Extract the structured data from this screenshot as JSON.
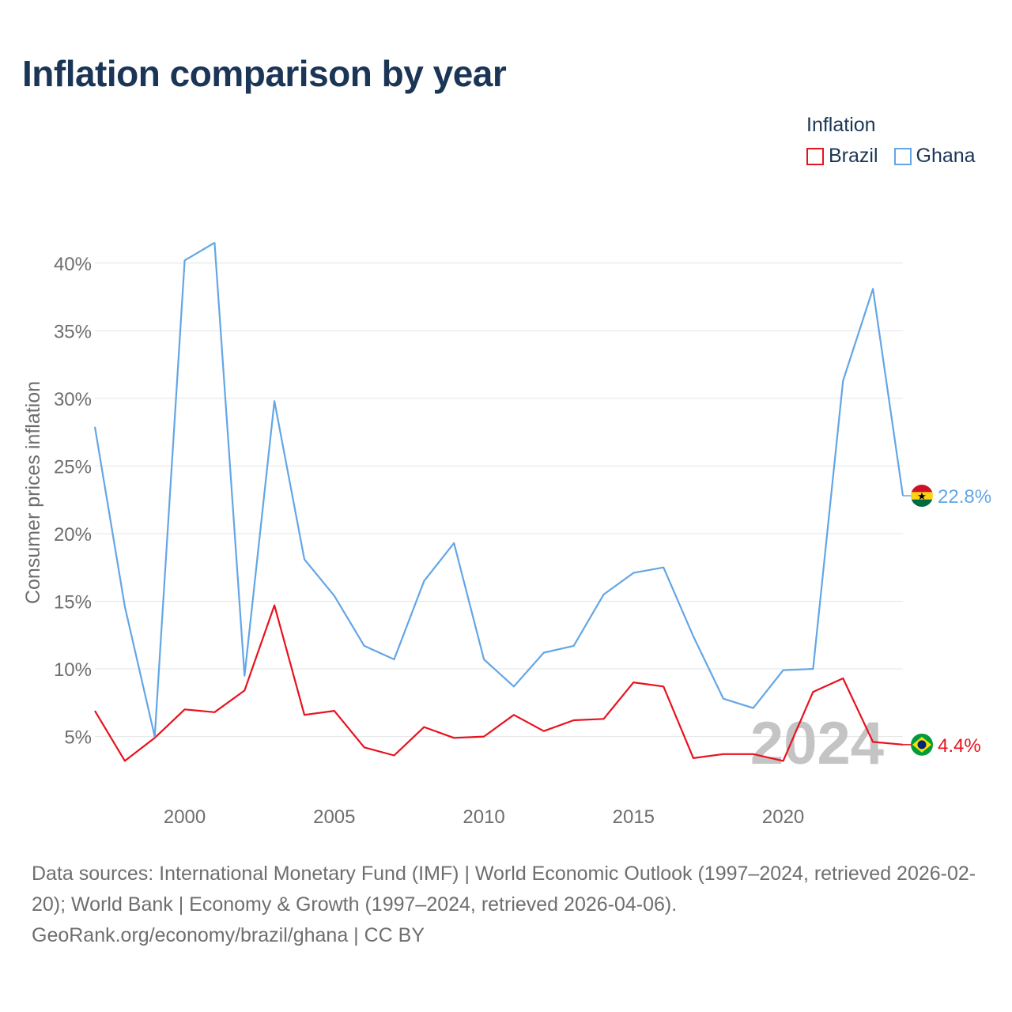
{
  "title": "Inflation comparison by year",
  "legend": {
    "title": "Inflation",
    "items": [
      {
        "name": "Brazil",
        "color": "#e8121e"
      },
      {
        "name": "Ghana",
        "color": "#63a6e6"
      }
    ]
  },
  "year_watermark": "2024",
  "footer": {
    "line1": "Data sources: International Monetary Fund (IMF) | World Economic Outlook (1997–2024, retrieved 2026-02-20); World Bank | Economy & Growth (1997–2024, retrieved 2026-04-06).",
    "line2": "GeoRank.org/economy/brazil/ghana | CC BY"
  },
  "chart_data": {
    "type": "line",
    "title": "Inflation comparison by year",
    "xlabel": "",
    "ylabel": "Consumer prices inflation",
    "x": [
      1997,
      1998,
      1999,
      2000,
      2001,
      2002,
      2003,
      2004,
      2005,
      2006,
      2007,
      2008,
      2009,
      2010,
      2011,
      2012,
      2013,
      2014,
      2015,
      2016,
      2017,
      2018,
      2019,
      2020,
      2021,
      2022,
      2023,
      2024
    ],
    "xlim": [
      1997,
      2024
    ],
    "ylim": [
      1,
      42.5
    ],
    "x_ticks": [
      "2000",
      "2005",
      "2010",
      "2015",
      "2020"
    ],
    "y_ticks": [
      "5%",
      "10%",
      "15%",
      "20%",
      "25%",
      "30%",
      "35%",
      "40%"
    ],
    "grid": true,
    "legend_position": "top-right",
    "series": [
      {
        "name": "Brazil",
        "color": "#e8121e",
        "values": [
          6.9,
          3.2,
          4.9,
          7.0,
          6.8,
          8.4,
          14.7,
          6.6,
          6.9,
          4.2,
          3.6,
          5.7,
          4.9,
          5.0,
          6.6,
          5.4,
          6.2,
          6.3,
          9.0,
          8.7,
          3.4,
          3.7,
          3.7,
          3.2,
          8.3,
          9.3,
          4.6,
          4.4
        ],
        "end_label": "4.4%",
        "flag": "brazil-flag"
      },
      {
        "name": "Ghana",
        "color": "#63a6e6",
        "values": [
          27.9,
          14.6,
          5.0,
          40.2,
          41.5,
          9.5,
          29.8,
          18.1,
          15.4,
          11.7,
          10.7,
          16.5,
          19.3,
          10.7,
          8.7,
          11.2,
          11.7,
          15.5,
          17.1,
          17.5,
          12.4,
          7.8,
          7.1,
          9.9,
          10.0,
          31.3,
          38.1,
          22.8
        ],
        "end_label": "22.8%",
        "flag": "ghana-flag"
      }
    ]
  }
}
